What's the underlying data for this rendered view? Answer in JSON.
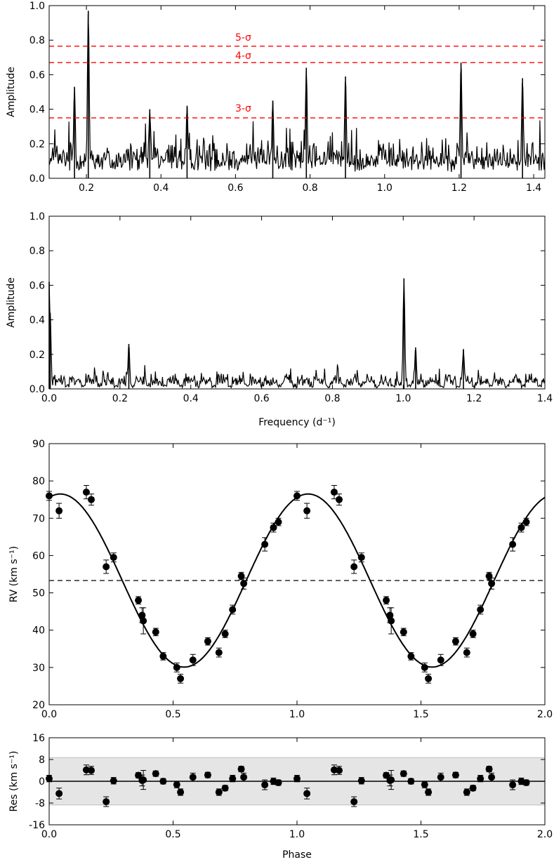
{
  "chart_data": [
    {
      "type": "line",
      "panel": "periodogram-top",
      "xlabel": "",
      "ylabel": "Amplitude",
      "xlim": [
        0.1,
        1.43
      ],
      "ylim": [
        0.0,
        1.0
      ],
      "xticks": [
        "0.2",
        "0.4",
        "0.6",
        "0.8",
        "1.0",
        "1.2",
        "1.4"
      ],
      "yticks": [
        "0.0",
        "0.2",
        "0.4",
        "0.6",
        "0.8",
        "1.0"
      ],
      "peaks": [
        {
          "x": 0.168,
          "y": 0.53
        },
        {
          "x": 0.205,
          "y": 0.97
        },
        {
          "x": 0.37,
          "y": 0.4
        },
        {
          "x": 0.47,
          "y": 0.42
        },
        {
          "x": 0.7,
          "y": 0.45
        },
        {
          "x": 0.79,
          "y": 0.64
        },
        {
          "x": 0.895,
          "y": 0.59
        },
        {
          "x": 1.205,
          "y": 0.67
        },
        {
          "x": 1.37,
          "y": 0.58
        }
      ],
      "series": [
        {
          "name": "5-σ",
          "y": 0.765,
          "color": "#ff0000",
          "dash": true
        },
        {
          "name": "4-σ",
          "y": 0.67,
          "color": "#ff0000",
          "dash": true
        },
        {
          "name": "3-σ",
          "y": 0.35,
          "color": "#ff0000",
          "dash": true
        }
      ],
      "noise_level": 0.12
    },
    {
      "type": "line",
      "panel": "periodogram-bottom",
      "xlabel": "Frequency (d⁻¹)",
      "ylabel": "Amplitude",
      "xlim": [
        0.0,
        1.4
      ],
      "ylim": [
        0.0,
        1.0
      ],
      "xticks": [
        "0.0",
        "0.2",
        "0.4",
        "0.6",
        "0.8",
        "1.0",
        "1.2",
        "1.4"
      ],
      "yticks": [
        "0.0",
        "0.2",
        "0.4",
        "0.6",
        "0.8",
        "1.0"
      ],
      "peaks": [
        {
          "x": 0.0,
          "y": 0.62
        },
        {
          "x": 0.003,
          "y": 0.44
        },
        {
          "x": 0.225,
          "y": 0.26
        },
        {
          "x": 1.002,
          "y": 0.64
        },
        {
          "x": 1.035,
          "y": 0.24
        },
        {
          "x": 1.17,
          "y": 0.23
        }
      ],
      "noise_level": 0.05
    },
    {
      "type": "scatter",
      "panel": "rv-curve",
      "xlabel": "",
      "ylabel": "RV (km s⁻¹)",
      "xlim": [
        0.0,
        2.0
      ],
      "ylim": [
        20,
        90
      ],
      "xticks": [
        "0.0",
        "0.5",
        "1.0",
        "1.5",
        "2.0"
      ],
      "yticks": [
        "20",
        "30",
        "40",
        "50",
        "60",
        "70",
        "80",
        "90"
      ],
      "systemic_velocity": 53.3,
      "fit": {
        "gamma": 53.3,
        "K": 23.2,
        "phi_max": 0.045
      },
      "x": [
        0.0,
        0.04,
        0.15,
        0.17,
        0.23,
        0.26,
        0.36,
        0.375,
        0.38,
        0.43,
        0.46,
        0.515,
        0.53,
        0.58,
        0.64,
        0.685,
        0.71,
        0.74,
        0.775,
        0.785,
        0.87,
        0.905,
        0.925
      ],
      "values": [
        76,
        72,
        77,
        75,
        57,
        59.5,
        48,
        44,
        42.5,
        39.5,
        33,
        30,
        27,
        32,
        37,
        34,
        39,
        45.5,
        54.5,
        52.5,
        63,
        67.5,
        69
      ],
      "errors": [
        1.2,
        2.0,
        1.8,
        1.5,
        1.8,
        1.2,
        1.0,
        2.0,
        3.5,
        1.0,
        1.0,
        1.2,
        1.2,
        1.5,
        1.0,
        1.2,
        1.0,
        1.2,
        1.0,
        1.5,
        1.8,
        1.2,
        1.0
      ]
    },
    {
      "type": "scatter",
      "panel": "residuals",
      "xlabel": "Phase",
      "ylabel": "Res (km s⁻¹)",
      "xlim": [
        0.0,
        2.0
      ],
      "ylim": [
        -16,
        16
      ],
      "xticks": [
        "0.0",
        "0.5",
        "1.0",
        "1.5",
        "2.0"
      ],
      "yticks": [
        "16",
        "8",
        "0",
        "-8",
        "-16"
      ],
      "band": [
        -8.7,
        8.7
      ],
      "x": [
        0.0,
        0.04,
        0.15,
        0.17,
        0.23,
        0.26,
        0.36,
        0.375,
        0.38,
        0.43,
        0.46,
        0.515,
        0.53,
        0.58,
        0.64,
        0.685,
        0.71,
        0.74,
        0.775,
        0.785,
        0.87,
        0.905,
        0.925
      ],
      "values": [
        1,
        -4.5,
        4.2,
        4.0,
        -7.5,
        0.2,
        2.2,
        0.3,
        0.5,
        2.8,
        0.0,
        -1.2,
        -4.0,
        1.5,
        2.3,
        -4.0,
        -2.5,
        1.0,
        4.5,
        1.5,
        -1.3,
        0.0,
        -0.5
      ],
      "errors": [
        1.2,
        2.0,
        1.8,
        1.5,
        1.8,
        1.2,
        1.0,
        2.0,
        3.5,
        1.0,
        1.0,
        1.2,
        1.2,
        1.5,
        1.0,
        1.2,
        1.0,
        1.2,
        1.0,
        1.5,
        1.8,
        1.2,
        1.0
      ]
    }
  ]
}
